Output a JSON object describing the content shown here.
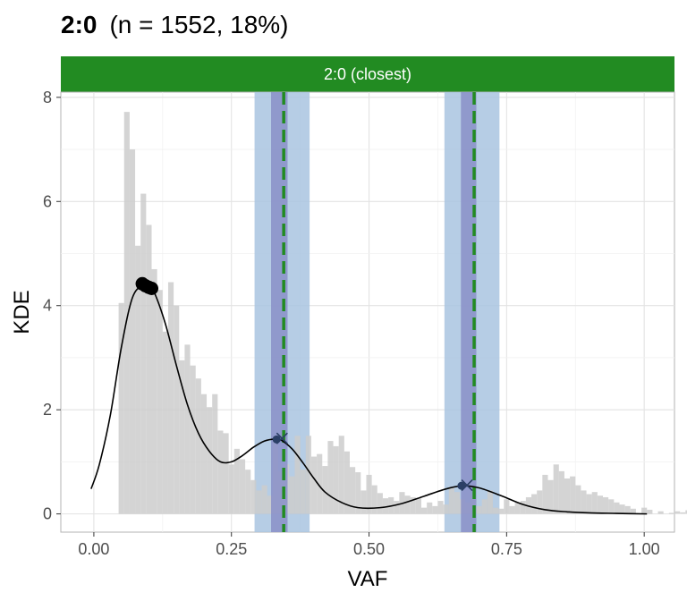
{
  "chart_data": {
    "type": "histogram",
    "title": {
      "bold": "2:0",
      "rest": "(n = 1552, 18%)"
    },
    "facet_label": "2:0 (closest)",
    "xlabel": "VAF",
    "ylabel": "KDE",
    "xlim": [
      -0.06,
      1.055
    ],
    "ylim": [
      -0.35,
      8.1
    ],
    "x_ticks": [
      0.0,
      0.25,
      0.5,
      0.75,
      1.0
    ],
    "x_tick_labels": [
      "0.00",
      "0.25",
      "0.50",
      "0.75",
      "1.00"
    ],
    "y_ticks": [
      0,
      2,
      4,
      6,
      8
    ],
    "y_tick_labels": [
      "0",
      "2",
      "4",
      "6",
      "8"
    ],
    "grid": true,
    "colors": {
      "histogram": "#cccccc",
      "band_outer": "#a9c4e0",
      "band_inner": "#8a8fc8",
      "vline": "#228b22",
      "facet_strip": "#228b22",
      "kde_line": "#000000",
      "peak_point": "#000000",
      "marker": "#2b3f66"
    },
    "histogram": {
      "bin_width": 0.01,
      "bins_start": 0.045,
      "counts": [
        4.05,
        7.72,
        7.0,
        5.15,
        6.15,
        5.55,
        4.7,
        4.3,
        3.5,
        4.45,
        4.0,
        2.95,
        3.25,
        2.85,
        2.6,
        2.3,
        2.05,
        2.3,
        1.6,
        1.55,
        0.95,
        1.25,
        1.05,
        0.85,
        0.65,
        0.45,
        0.55,
        0.35,
        1.45,
        0.82,
        0.95,
        0.72,
        1.5,
        0.85,
        1.5,
        1.1,
        1.15,
        0.92,
        1.4,
        1.3,
        1.5,
        1.2,
        0.9,
        0.8,
        0.45,
        0.75,
        0.55,
        0.4,
        0.3,
        0.32,
        0.25,
        0.42,
        0.35,
        0.32,
        0.3,
        0.12,
        0.22,
        0.15,
        0.25,
        0.18,
        0.52,
        0.42,
        0.28,
        0.22,
        0.35,
        0.15,
        0.28,
        0.45,
        0.12,
        0.1,
        0.28,
        0.15,
        0.22,
        0.25,
        0.32,
        0.38,
        0.45,
        0.75,
        0.65,
        0.95,
        0.82,
        0.68,
        0.72,
        0.55,
        0.45,
        0.38,
        0.42,
        0.35,
        0.32,
        0.28,
        0.22,
        0.18,
        0.15,
        0.1,
        0.0,
        0.12,
        0.08,
        0.0,
        0.05,
        0.0,
        0.02,
        0.05,
        0.03,
        0.07,
        0.02
      ]
    },
    "kde": {
      "x": [
        -0.005,
        0.01,
        0.03,
        0.05,
        0.07,
        0.09,
        0.1,
        0.11,
        0.13,
        0.15,
        0.17,
        0.19,
        0.21,
        0.23,
        0.25,
        0.27,
        0.29,
        0.31,
        0.33,
        0.34,
        0.36,
        0.38,
        0.4,
        0.42,
        0.45,
        0.48,
        0.52,
        0.56,
        0.6,
        0.64,
        0.67,
        0.7,
        0.74,
        0.78,
        0.82,
        0.86,
        0.9,
        0.95,
        1.005
      ],
      "y": [
        0.48,
        0.95,
        1.9,
        3.2,
        4.15,
        4.4,
        4.38,
        4.25,
        3.65,
        2.85,
        2.1,
        1.55,
        1.2,
        1.0,
        1.0,
        1.12,
        1.28,
        1.4,
        1.44,
        1.42,
        1.25,
        0.98,
        0.68,
        0.42,
        0.22,
        0.12,
        0.12,
        0.2,
        0.34,
        0.48,
        0.54,
        0.5,
        0.35,
        0.18,
        0.08,
        0.04,
        0.02,
        0.01,
        0.0
      ]
    },
    "bands": [
      {
        "outer": [
          0.292,
          0.392
        ],
        "inner": [
          0.322,
          0.352
        ],
        "vline": 0.345
      },
      {
        "outer": [
          0.637,
          0.737
        ],
        "inner": [
          0.667,
          0.695
        ],
        "vline": 0.691
      }
    ],
    "peak_points": [
      {
        "x": 0.088,
        "y": 4.42
      },
      {
        "x": 0.094,
        "y": 4.38
      },
      {
        "x": 0.1,
        "y": 4.35
      },
      {
        "x": 0.105,
        "y": 4.33
      }
    ],
    "markers": [
      {
        "x": 0.332,
        "y": 1.43
      },
      {
        "x": 0.668,
        "y": 0.54
      }
    ],
    "crosses": [
      {
        "x": 0.342,
        "y": 1.45
      },
      {
        "x": 0.678,
        "y": 0.55
      }
    ]
  }
}
